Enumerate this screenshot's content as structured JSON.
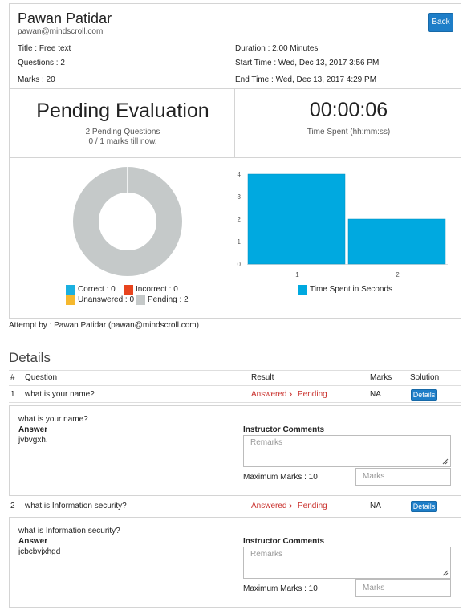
{
  "header": {
    "name": "Pawan Patidar",
    "email": "pawan@mindscroll.com",
    "back_label": "Back",
    "title_text": "Title : Free text",
    "questions_text": "Questions : 2",
    "marks_text": "Marks : 20",
    "duration_text": "Duration : 2.00 Minutes",
    "start_time_text": "Start Time : Wed, Dec 13, 2017 3:56 PM",
    "end_time_text": "End Time : Wed, Dec 13, 2017 4:29 PM"
  },
  "status": {
    "heading": "Pending Evaluation",
    "pending_questions": "2 Pending Questions",
    "marks_till_now": "0 / 1 marks till now.",
    "timer": "00:00:06",
    "timer_label": "Time Spent (hh:mm:ss)"
  },
  "donut": {
    "legend": [
      {
        "label": "Correct : 0",
        "color": "#1ab0e0"
      },
      {
        "label": "Incorrect : 0",
        "color": "#e8441e"
      },
      {
        "label": "Unanswered : 0",
        "color": "#f5b82e"
      },
      {
        "label": "Pending : 2",
        "color": "#c5c9c9"
      }
    ],
    "values": [
      0,
      0,
      0,
      2
    ]
  },
  "chart_data": {
    "type": "bar",
    "categories": [
      "1",
      "2"
    ],
    "values": [
      4,
      2
    ],
    "y_ticks": [
      "0",
      "1",
      "2",
      "3",
      "4"
    ],
    "ylim": [
      0,
      4
    ],
    "legend": "Time Spent in Seconds",
    "color": "#00a9e0"
  },
  "attempt_by": "Attempt by : Pawan Patidar (pawan@mindscroll.com)",
  "details": {
    "heading": "Details",
    "columns": {
      "num": "#",
      "question": "Question",
      "result": "Result",
      "marks": "Marks",
      "solution": "Solution"
    },
    "rows": [
      {
        "num": "1",
        "question": "what is your name?",
        "result_answered": "Answered",
        "result_pending": "Pending",
        "marks": "NA",
        "details_label": "Details",
        "detail_question": "what is your name?",
        "answer_label": "Answer",
        "answer": "jvbvgxh.",
        "instructor_label": "Instructor Comments",
        "remarks_placeholder": "Remarks",
        "max_marks": "Maximum Marks : 10",
        "marks_placeholder": "Marks"
      },
      {
        "num": "2",
        "question": "what is Information security?",
        "result_answered": "Answered",
        "result_pending": "Pending",
        "marks": "NA",
        "details_label": "Details",
        "detail_question": "what is Information security?",
        "answer_label": "Answer",
        "answer": "jcbcbvjxhgd",
        "instructor_label": "Instructor Comments",
        "remarks_placeholder": "Remarks",
        "max_marks": "Maximum Marks : 10",
        "marks_placeholder": "Marks"
      }
    ]
  }
}
